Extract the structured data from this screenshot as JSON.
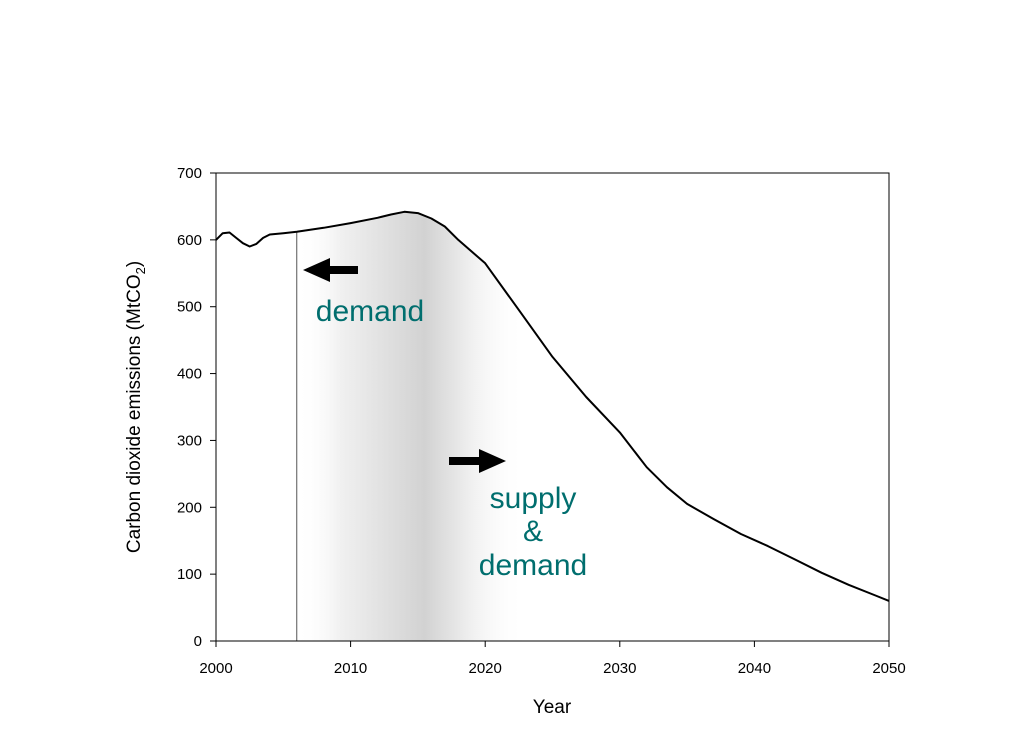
{
  "chart_data": {
    "type": "line",
    "xlabel": "Year",
    "ylabel": {
      "main": "Carbon dioxide emissions (MtCO",
      "sub": "2",
      "close": ")"
    },
    "xlim": [
      2000,
      2050
    ],
    "ylim": [
      0,
      700
    ],
    "xticks": [
      2000,
      2010,
      2020,
      2030,
      2040,
      2050
    ],
    "yticks": [
      0,
      100,
      200,
      300,
      400,
      500,
      600,
      700
    ],
    "grid": false,
    "series": [
      {
        "color": "#000000",
        "x": [
          2000,
          2000.5,
          2001,
          2001.5,
          2002,
          2002.5,
          2003,
          2003.5,
          2004,
          2005,
          2006,
          2008,
          2010,
          2012,
          2013,
          2014,
          2015,
          2016,
          2017,
          2018,
          2020,
          2022.5,
          2025,
          2027.5,
          2030,
          2032,
          2033.5,
          2035,
          2037,
          2039,
          2041,
          2043,
          2045,
          2047,
          2049,
          2050
        ],
        "y": [
          600,
          610,
          611,
          603,
          595,
          590,
          594,
          603,
          608,
          610,
          612,
          618,
          625,
          633,
          638,
          642,
          640,
          632,
          620,
          600,
          565,
          495,
          425,
          365,
          312,
          260,
          230,
          205,
          182,
          160,
          142,
          122,
          102,
          84,
          68,
          60
        ]
      }
    ],
    "annotations": {
      "reference_line_year": 2006,
      "shaded_region": {
        "x_from": 2006,
        "x_to": 2023,
        "darkest_at": 2015.5
      },
      "demand_label": "demand",
      "supply_label_line1": "supply",
      "supply_label_line2": "&",
      "supply_label_line3": "demand",
      "label_color": "#006E6E"
    }
  }
}
